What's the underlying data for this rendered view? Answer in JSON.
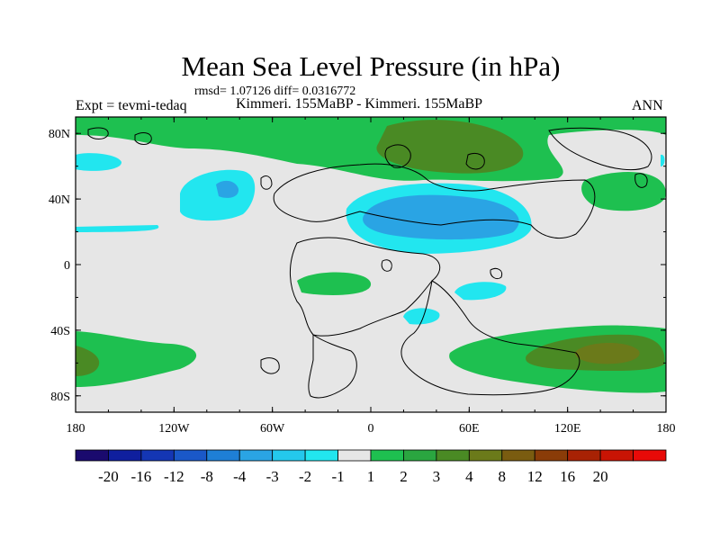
{
  "title": "Mean Sea Level Pressure (in hPa)",
  "stats_text": "rmsd= 1.07126 diff= 0.0316772",
  "left_label": "Expt = tevmi-tedaq",
  "center_label": "Kimmeri. 155MaBP - Kimmeri. 155MaBP",
  "right_label": "ANN",
  "lat_ticks": [
    "80N",
    "40N",
    "0",
    "40S",
    "80S"
  ],
  "lon_ticks": [
    "180",
    "120W",
    "60W",
    "0",
    "60E",
    "120E",
    "180"
  ],
  "colorbar": {
    "colors": [
      "#1a0a6e",
      "#0f1f9e",
      "#1436b4",
      "#1a58c8",
      "#1e7fd6",
      "#2aa4e4",
      "#24c8ec",
      "#22e6ef",
      "#e6e6e6",
      "#1ec050",
      "#2aa640",
      "#4a8a24",
      "#6b7a1a",
      "#7a5c10",
      "#8a3c08",
      "#a82204",
      "#c81404",
      "#e80a08"
    ],
    "labels": [
      "-20",
      "-16",
      "-12",
      "-8",
      "-4",
      "-3",
      "-2",
      "-1",
      "1",
      "2",
      "3",
      "4",
      "8",
      "12",
      "16",
      "20"
    ]
  },
  "chart_data": {
    "type": "heatmap",
    "title": "Mean Sea Level Pressure (in hPa)",
    "projection": "cylindrical equidistant",
    "lon_range": [
      -180,
      180
    ],
    "lat_range": [
      -90,
      90
    ],
    "units": "hPa",
    "contour_levels": [
      -20,
      -16,
      -12,
      -8,
      -4,
      -3,
      -2,
      -1,
      1,
      2,
      3,
      4,
      8,
      12,
      16,
      20
    ],
    "anomaly_regions": [
      {
        "name": "arctic-high",
        "lon": 0,
        "lat": 75,
        "range": "2 to 4"
      },
      {
        "name": "north-pacific-low",
        "lon": -95,
        "lat": 42,
        "range": "-2 to -3"
      },
      {
        "name": "tethys-low",
        "lon": 25,
        "lat": 32,
        "range": "-2 to -4"
      },
      {
        "name": "tropical-atlantic-high",
        "lon": -40,
        "lat": -10,
        "range": "1 to 2"
      },
      {
        "name": "southern-ocean-high-east",
        "lon": 145,
        "lat": -55,
        "range": "2 to 4"
      },
      {
        "name": "southern-ocean-high-west",
        "lon": -175,
        "lat": -55,
        "range": "2 to 3"
      }
    ]
  }
}
